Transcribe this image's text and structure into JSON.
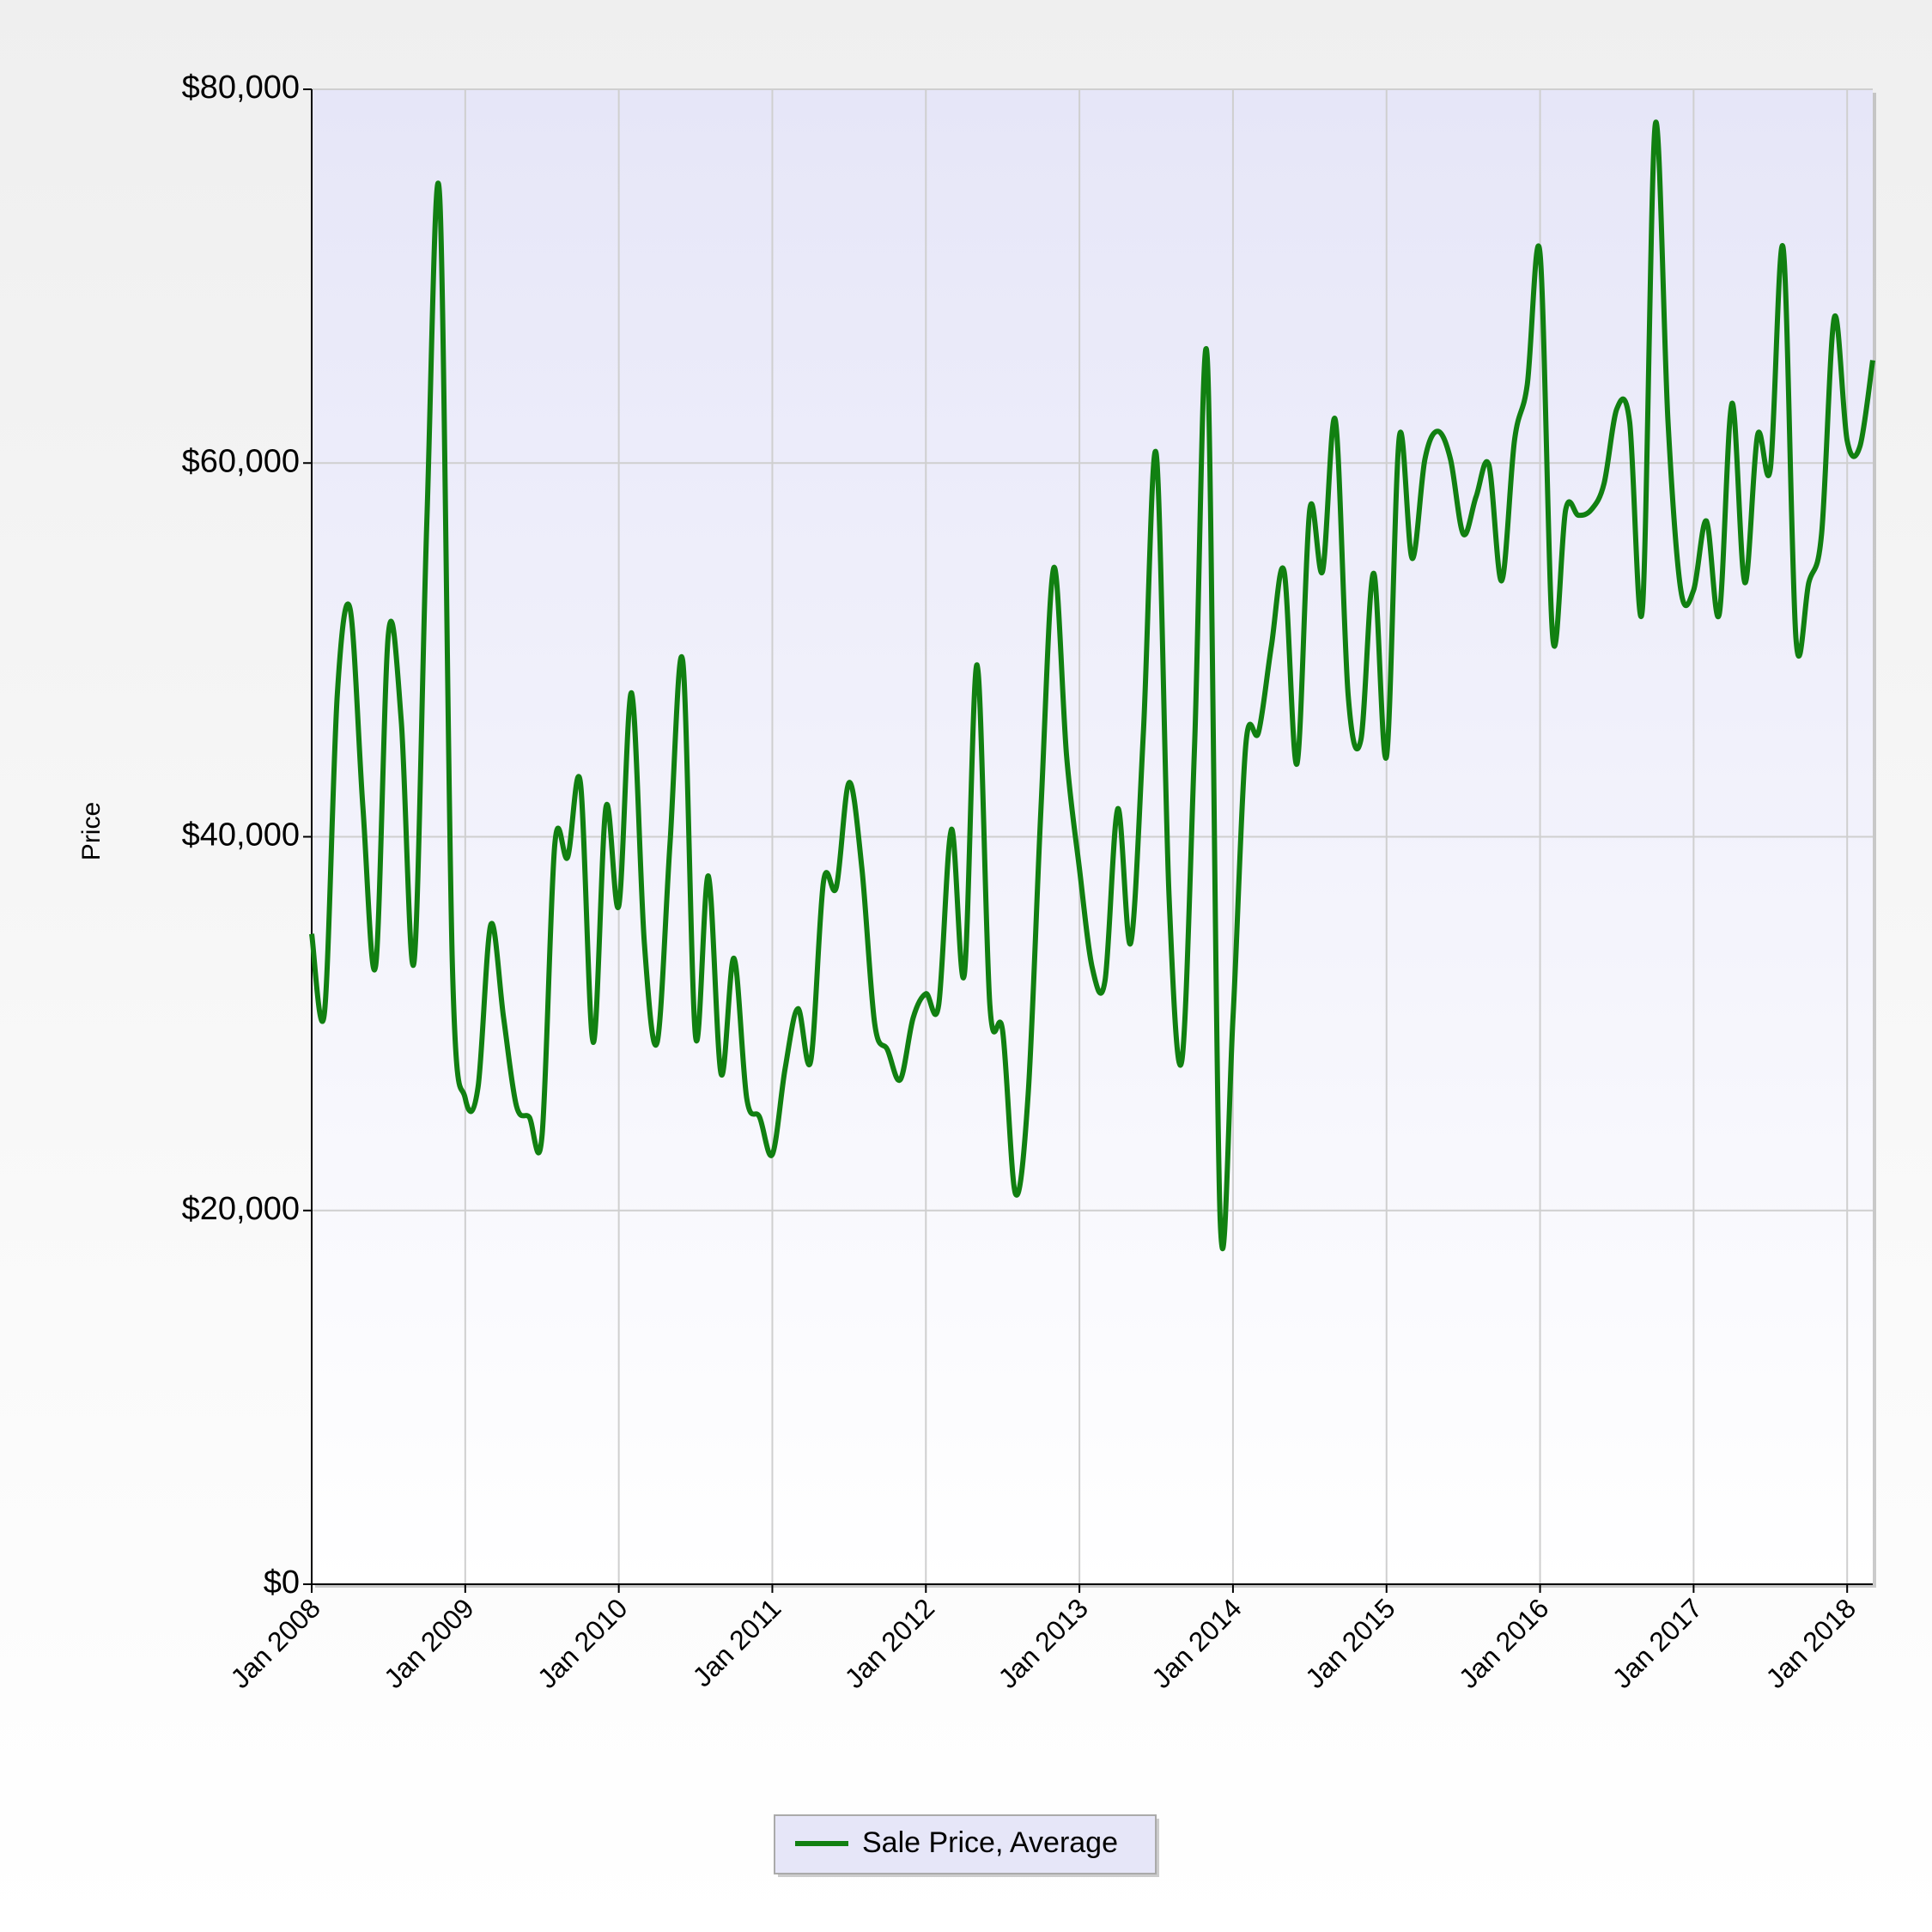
{
  "chart_data": {
    "type": "line",
    "y_label": "Price",
    "x": [
      "2008-01",
      "2008-02",
      "2008-03",
      "2008-04",
      "2008-05",
      "2008-06",
      "2008-07",
      "2008-08",
      "2008-09",
      "2008-10",
      "2008-11",
      "2008-12",
      "2009-01",
      "2009-02",
      "2009-03",
      "2009-04",
      "2009-05",
      "2009-06",
      "2009-07",
      "2009-08",
      "2009-09",
      "2009-10",
      "2009-11",
      "2009-12",
      "2010-01",
      "2010-02",
      "2010-03",
      "2010-04",
      "2010-05",
      "2010-06",
      "2010-07",
      "2010-08",
      "2010-09",
      "2010-10",
      "2010-11",
      "2010-12",
      "2011-01",
      "2011-02",
      "2011-03",
      "2011-04",
      "2011-05",
      "2011-06",
      "2011-07",
      "2011-08",
      "2011-09",
      "2011-10",
      "2011-11",
      "2011-12",
      "2012-01",
      "2012-02",
      "2012-03",
      "2012-04",
      "2012-05",
      "2012-06",
      "2012-07",
      "2012-08",
      "2012-09",
      "2012-10",
      "2012-11",
      "2012-12",
      "2013-01",
      "2013-02",
      "2013-03",
      "2013-04",
      "2013-05",
      "2013-06",
      "2013-07",
      "2013-08",
      "2013-09",
      "2013-10",
      "2013-11",
      "2013-12",
      "2014-01",
      "2014-02",
      "2014-03",
      "2014-04",
      "2014-05",
      "2014-06",
      "2014-07",
      "2014-08",
      "2014-09",
      "2014-10",
      "2014-11",
      "2014-12",
      "2015-01",
      "2015-02",
      "2015-03",
      "2015-04",
      "2015-05",
      "2015-06",
      "2015-07",
      "2015-08",
      "2015-09",
      "2015-10",
      "2015-11",
      "2015-12",
      "2016-01",
      "2016-02",
      "2016-03",
      "2016-04",
      "2016-05",
      "2016-06",
      "2016-07",
      "2016-08",
      "2016-09",
      "2016-10",
      "2016-11",
      "2016-12",
      "2017-01",
      "2017-02",
      "2017-03",
      "2017-04",
      "2017-05",
      "2017-06",
      "2017-07",
      "2017-08",
      "2017-09",
      "2017-10",
      "2017-11",
      "2017-12",
      "2018-01",
      "2018-02",
      "2018-03"
    ],
    "series": [
      {
        "name": "Sale Price, Average",
        "color": "#118011",
        "values": [
          34800,
          30600,
          47600,
          52200,
          41600,
          33100,
          50900,
          46200,
          33300,
          56900,
          74300,
          33000,
          26000,
          26600,
          35300,
          30300,
          25600,
          25000,
          24000,
          39600,
          38900,
          42900,
          29000,
          41600,
          36300,
          47700,
          34300,
          29000,
          39600,
          49400,
          29300,
          37900,
          27300,
          33500,
          26000,
          25000,
          23000,
          27600,
          30800,
          28000,
          37600,
          37300,
          42900,
          38300,
          30000,
          28600,
          27000,
          30300,
          31600,
          31000,
          40400,
          32600,
          49200,
          31000,
          29600,
          20900,
          26300,
          41600,
          54400,
          44300,
          38300,
          33000,
          32300,
          41500,
          34300,
          45600,
          60500,
          36900,
          28000,
          44900,
          65500,
          19500,
          30300,
          44900,
          45600,
          50200,
          54200,
          43900,
          57500,
          54200,
          62300,
          47600,
          45200,
          54100,
          44300,
          61400,
          54900,
          60200,
          61700,
          60200,
          56200,
          58200,
          59900,
          53700,
          61200,
          64200,
          71200,
          50600,
          57500,
          57200,
          57500,
          58900,
          62900,
          62200,
          52200,
          78100,
          62200,
          53200,
          53200,
          56900,
          51900,
          63200,
          53600,
          61500,
          59700,
          71500,
          50600,
          53600,
          56200,
          67800,
          61200,
          60900,
          65500
        ]
      }
    ],
    "xticks": [
      {
        "value": "2008-01",
        "label": "Jan 2008"
      },
      {
        "value": "2009-01",
        "label": "Jan 2009"
      },
      {
        "value": "2010-01",
        "label": "Jan 2010"
      },
      {
        "value": "2011-01",
        "label": "Jan 2011"
      },
      {
        "value": "2012-01",
        "label": "Jan 2012"
      },
      {
        "value": "2013-01",
        "label": "Jan 2013"
      },
      {
        "value": "2014-01",
        "label": "Jan 2014"
      },
      {
        "value": "2015-01",
        "label": "Jan 2015"
      },
      {
        "value": "2016-01",
        "label": "Jan 2016"
      },
      {
        "value": "2017-01",
        "label": "Jan 2017"
      },
      {
        "value": "2018-01",
        "label": "Jan 2018"
      }
    ],
    "ylim": [
      0,
      80000
    ],
    "yticks": [
      {
        "value": 0,
        "label": "$0"
      },
      {
        "value": 20000,
        "label": "$20,000"
      },
      {
        "value": 40000,
        "label": "$40,000"
      },
      {
        "value": 60000,
        "label": "$60,000"
      },
      {
        "value": 80000,
        "label": "$80,000"
      }
    ],
    "grid": true,
    "legend": "bottom"
  }
}
